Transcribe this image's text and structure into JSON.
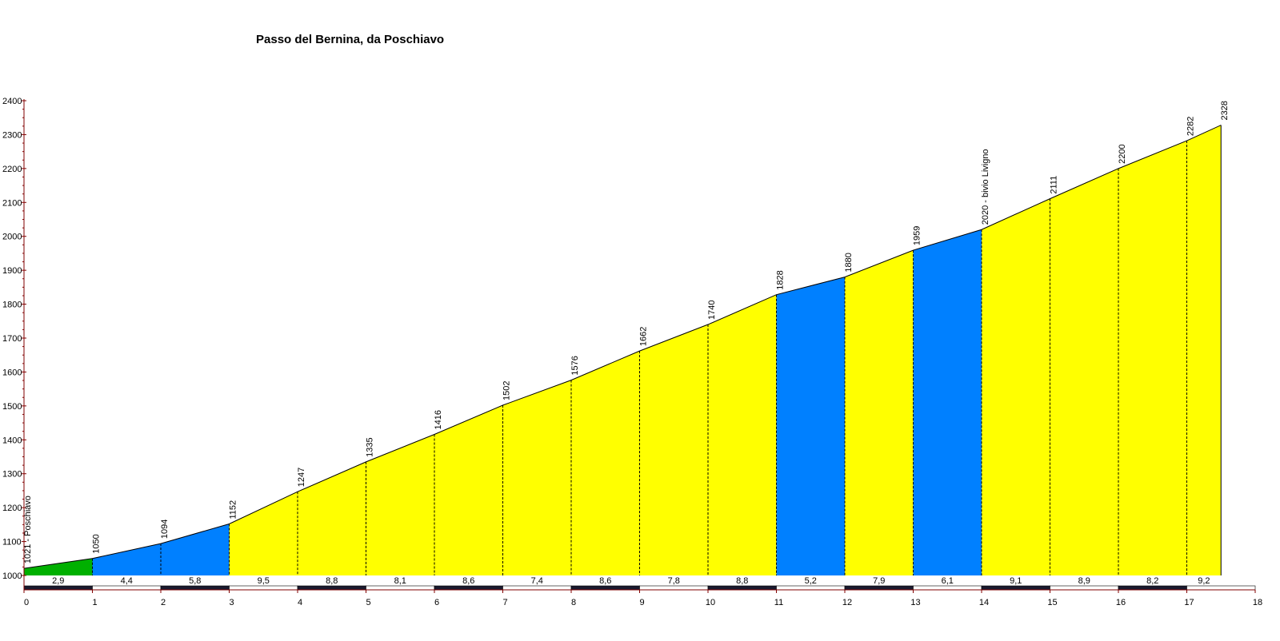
{
  "chart_data": {
    "type": "area",
    "title": "Passo del Bernina, da Poschiavo",
    "xlabel": "",
    "ylabel": "",
    "xlim": [
      0,
      18
    ],
    "ylim": [
      1000,
      2400
    ],
    "x_ticks": [
      "0",
      "1",
      "2",
      "3",
      "4",
      "5",
      "6",
      "7",
      "8",
      "9",
      "10",
      "11",
      "12",
      "13",
      "14",
      "15",
      "16",
      "17",
      "18"
    ],
    "y_ticks": [
      "1000",
      "1100",
      "1200",
      "1300",
      "1400",
      "1500",
      "1600",
      "1700",
      "1800",
      "1900",
      "2000",
      "2100",
      "2200",
      "2300",
      "2400"
    ],
    "points": [
      {
        "x": 0,
        "y": 1021,
        "label": "1021 - Poschiavo"
      },
      {
        "x": 1,
        "y": 1050,
        "label": "1050"
      },
      {
        "x": 2,
        "y": 1094,
        "label": "1094"
      },
      {
        "x": 3,
        "y": 1152,
        "label": "1152"
      },
      {
        "x": 4,
        "y": 1247,
        "label": "1247"
      },
      {
        "x": 5,
        "y": 1335,
        "label": "1335"
      },
      {
        "x": 6,
        "y": 1416,
        "label": "1416"
      },
      {
        "x": 7,
        "y": 1502,
        "label": "1502"
      },
      {
        "x": 8,
        "y": 1576,
        "label": "1576"
      },
      {
        "x": 9,
        "y": 1662,
        "label": "1662"
      },
      {
        "x": 10,
        "y": 1740,
        "label": "1740"
      },
      {
        "x": 11,
        "y": 1828,
        "label": "1828"
      },
      {
        "x": 12,
        "y": 1880,
        "label": "1880"
      },
      {
        "x": 13,
        "y": 1959,
        "label": "1959"
      },
      {
        "x": 14,
        "y": 2020,
        "label": "2020 - bivio Livigno"
      },
      {
        "x": 15,
        "y": 2111,
        "label": "2111"
      },
      {
        "x": 16,
        "y": 2200,
        "label": "2200"
      },
      {
        "x": 17,
        "y": 2282,
        "label": "2282"
      },
      {
        "x": 17.5,
        "y": 2328,
        "label": "2328"
      }
    ],
    "segments": [
      {
        "from": 0,
        "to": 1,
        "gradient": "2,9",
        "color": "#00b000"
      },
      {
        "from": 1,
        "to": 2,
        "gradient": "4,4",
        "color": "#0080ff"
      },
      {
        "from": 2,
        "to": 3,
        "gradient": "5,8",
        "color": "#0080ff"
      },
      {
        "from": 3,
        "to": 4,
        "gradient": "9,5",
        "color": "#ffff00"
      },
      {
        "from": 4,
        "to": 5,
        "gradient": "8,8",
        "color": "#ffff00"
      },
      {
        "from": 5,
        "to": 6,
        "gradient": "8,1",
        "color": "#ffff00"
      },
      {
        "from": 6,
        "to": 7,
        "gradient": "8,6",
        "color": "#ffff00"
      },
      {
        "from": 7,
        "to": 8,
        "gradient": "7,4",
        "color": "#ffff00"
      },
      {
        "from": 8,
        "to": 9,
        "gradient": "8,6",
        "color": "#ffff00"
      },
      {
        "from": 9,
        "to": 10,
        "gradient": "7,8",
        "color": "#ffff00"
      },
      {
        "from": 10,
        "to": 11,
        "gradient": "8,8",
        "color": "#ffff00"
      },
      {
        "from": 11,
        "to": 12,
        "gradient": "5,2",
        "color": "#0080ff"
      },
      {
        "from": 12,
        "to": 13,
        "gradient": "7,9",
        "color": "#ffff00"
      },
      {
        "from": 13,
        "to": 14,
        "gradient": "6,1",
        "color": "#0080ff"
      },
      {
        "from": 14,
        "to": 15,
        "gradient": "9,1",
        "color": "#ffff00"
      },
      {
        "from": 15,
        "to": 16,
        "gradient": "8,9",
        "color": "#ffff00"
      },
      {
        "from": 16,
        "to": 17,
        "gradient": "8,2",
        "color": "#ffff00"
      },
      {
        "from": 17,
        "to": 17.5,
        "gradient": "9,2",
        "color": "#ffff00"
      }
    ],
    "grid": false,
    "colors": {
      "axis": "#800000",
      "scale_dark": "#1a1a2e",
      "scale_light": "#ffffff"
    }
  }
}
